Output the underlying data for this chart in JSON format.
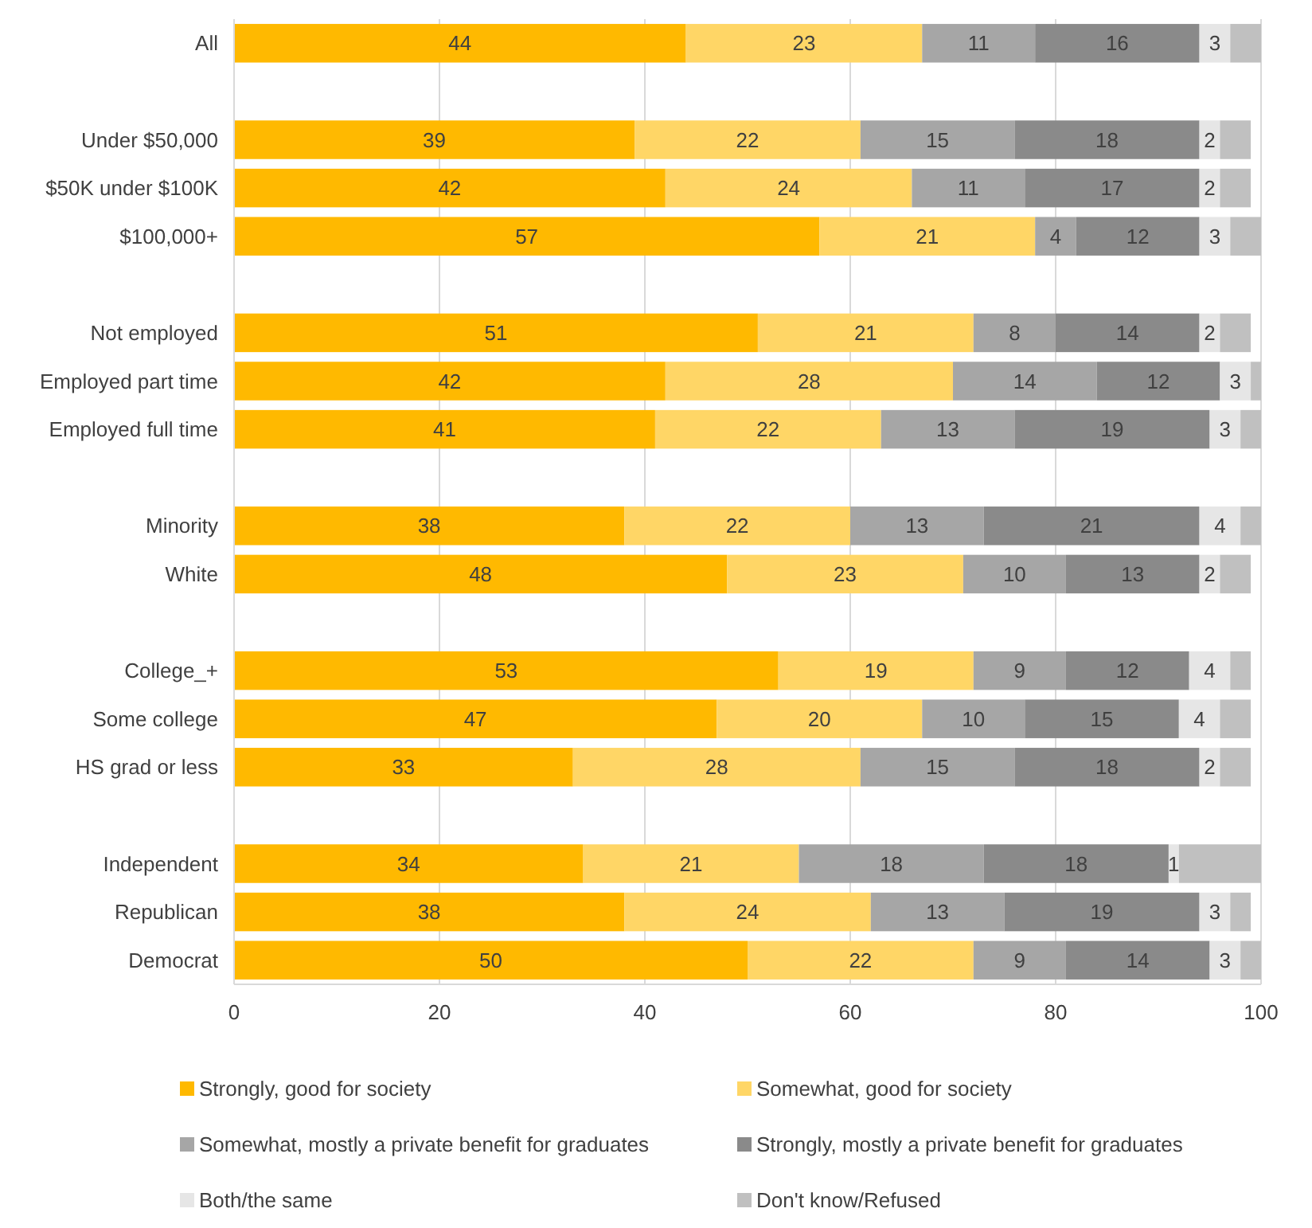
{
  "chart_data": {
    "type": "bar",
    "orientation": "horizontal",
    "stacked": true,
    "grid": "x",
    "legend": "bottom",
    "xlim": [
      0,
      100
    ],
    "xticks": [
      0,
      20,
      40,
      60,
      80,
      100
    ],
    "categories": [
      "All",
      null,
      "Under $50,000",
      "$50K under $100K",
      "$100,000+",
      null,
      "Not employed",
      "Employed part time",
      "Employed full time",
      null,
      "Minority",
      "White",
      null,
      "College_+",
      "Some college",
      "HS grad or less",
      null,
      "Independent",
      "Republican",
      "Democrat"
    ],
    "series": [
      {
        "name": "Strongly, good for society",
        "color": "#ffb900",
        "values": [
          44,
          null,
          39,
          42,
          57,
          null,
          51,
          42,
          41,
          null,
          38,
          48,
          null,
          53,
          47,
          33,
          null,
          34,
          38,
          50
        ],
        "value_labels": [
          "44",
          null,
          "39",
          "42",
          "57",
          null,
          "51",
          "42",
          "41",
          null,
          "38",
          "48",
          null,
          "53",
          "47",
          "33",
          null,
          "34",
          "38",
          "50"
        ]
      },
      {
        "name": "Somewhat, good for society",
        "color": "#ffd666",
        "values": [
          23,
          null,
          22,
          24,
          21,
          null,
          21,
          28,
          22,
          null,
          22,
          23,
          null,
          19,
          20,
          28,
          null,
          21,
          24,
          22
        ],
        "value_labels": [
          "23",
          null,
          "22",
          "24",
          "21",
          null,
          "21",
          "28",
          "22",
          null,
          "22",
          "23",
          null,
          "19",
          "20",
          "28",
          null,
          "21",
          "24",
          "22"
        ]
      },
      {
        "name": "Somewhat, mostly a private benefit for graduates",
        "color": "#a6a6a6",
        "values": [
          11,
          null,
          15,
          11,
          4,
          null,
          8,
          14,
          13,
          null,
          13,
          10,
          null,
          9,
          10,
          15,
          null,
          18,
          13,
          9
        ],
        "value_labels": [
          "11",
          null,
          "15",
          "11",
          "4",
          null,
          "8",
          "14",
          "13",
          null,
          "13",
          "10",
          null,
          "9",
          "10",
          "15",
          null,
          "18",
          "13",
          "9"
        ]
      },
      {
        "name": "Strongly, mostly a private benefit for graduates",
        "color": "#8a8a8a",
        "values": [
          16,
          null,
          18,
          17,
          12,
          null,
          14,
          12,
          19,
          null,
          21,
          13,
          null,
          12,
          15,
          18,
          null,
          18,
          19,
          14
        ],
        "value_labels": [
          "16",
          null,
          "18",
          "17",
          "12",
          null,
          "14",
          "12",
          "19",
          null,
          "21",
          "13",
          null,
          "12",
          "15",
          "18",
          null,
          "18",
          "19",
          "14"
        ]
      },
      {
        "name": "Both/the same",
        "color": "#e6e6e6",
        "values": [
          3,
          null,
          2,
          2,
          3,
          null,
          2,
          3,
          3,
          null,
          4,
          2,
          null,
          4,
          4,
          2,
          null,
          1,
          3,
          3
        ],
        "value_labels": [
          "3",
          null,
          "2",
          "2",
          "3",
          null,
          "2",
          "3",
          "3",
          null,
          "4",
          "2",
          null,
          "4",
          "4",
          "2",
          null,
          "1",
          "3",
          "3"
        ]
      },
      {
        "name": "Don't know/Refused",
        "color": "#c0c0c0",
        "values": [
          3,
          null,
          3,
          3,
          3,
          null,
          3,
          1,
          2,
          null,
          2,
          3,
          null,
          2,
          3,
          3,
          null,
          8,
          2,
          2
        ]
      }
    ]
  }
}
